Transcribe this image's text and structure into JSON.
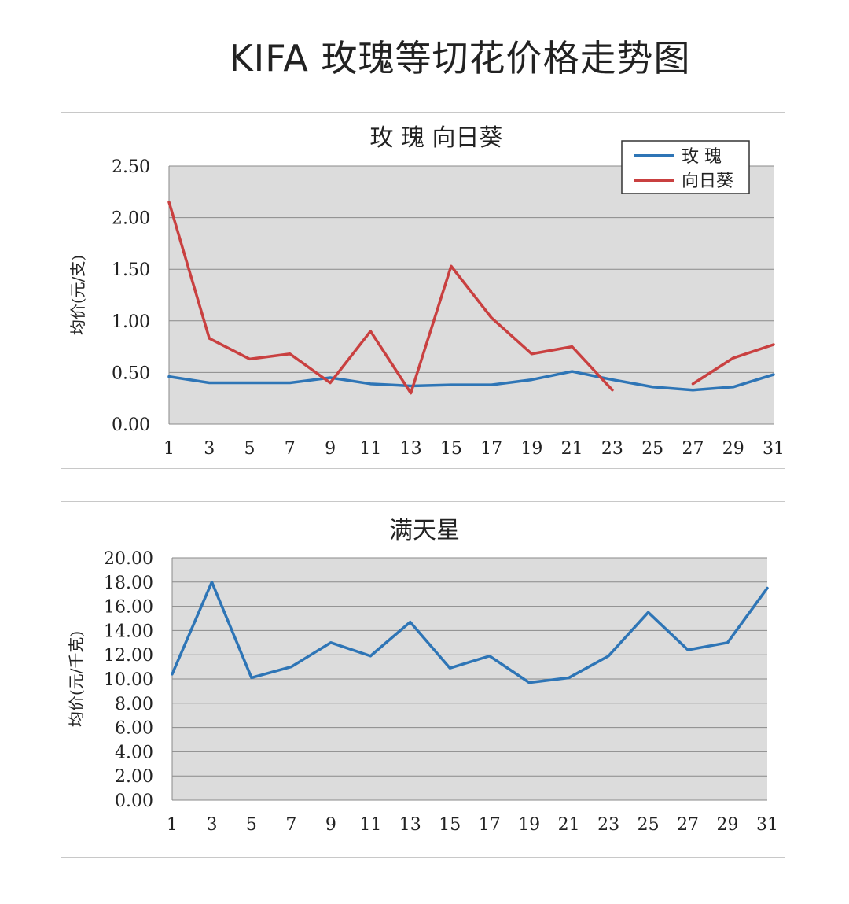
{
  "page_title": "KIFA 玫瑰等切花价格走势图",
  "chart_data": [
    {
      "type": "line",
      "title": "玫  瑰    向日葵",
      "xlabel": "",
      "ylabel": "均价(元/支)",
      "ylim": [
        0,
        2.5
      ],
      "xlim": [
        1,
        31
      ],
      "y_ticks": [
        "0.00",
        "0.50",
        "1.00",
        "1.50",
        "2.00",
        "2.50"
      ],
      "x_ticks": [
        "1",
        "3",
        "5",
        "7",
        "9",
        "11",
        "13",
        "15",
        "17",
        "19",
        "21",
        "23",
        "25",
        "27",
        "29",
        "31"
      ],
      "grid": true,
      "legend_position": "top-right",
      "series": [
        {
          "name": "玫 瑰",
          "color": "#2e75b6",
          "points": [
            [
              1,
              0.46
            ],
            [
              3,
              0.4
            ],
            [
              5,
              0.4
            ],
            [
              7,
              0.4
            ],
            [
              9,
              0.45
            ],
            [
              11,
              0.39
            ],
            [
              13,
              0.37
            ],
            [
              15,
              0.38
            ],
            [
              17,
              0.38
            ],
            [
              19,
              0.43
            ],
            [
              21,
              0.51
            ],
            [
              23,
              0.43
            ],
            [
              25,
              0.36
            ],
            [
              27,
              0.33
            ],
            [
              29,
              0.36
            ],
            [
              31,
              0.48
            ]
          ]
        },
        {
          "name": "向日葵",
          "color": "#c94040",
          "segments": [
            [
              [
                1,
                2.15
              ],
              [
                3,
                0.83
              ],
              [
                5,
                0.63
              ],
              [
                7,
                0.68
              ],
              [
                9,
                0.4
              ],
              [
                11,
                0.9
              ],
              [
                13,
                0.3
              ],
              [
                15,
                1.53
              ],
              [
                17,
                1.03
              ],
              [
                19,
                0.68
              ],
              [
                21,
                0.75
              ],
              [
                23,
                0.33
              ]
            ],
            [
              [
                27,
                0.39
              ],
              [
                29,
                0.64
              ],
              [
                31,
                0.77
              ]
            ]
          ]
        }
      ]
    },
    {
      "type": "line",
      "title": "满天星",
      "xlabel": "",
      "ylabel": "均价(元/千克)",
      "ylim": [
        0,
        20
      ],
      "xlim": [
        1,
        31
      ],
      "y_ticks": [
        "0.00",
        "2.00",
        "4.00",
        "6.00",
        "8.00",
        "10.00",
        "12.00",
        "14.00",
        "16.00",
        "18.00",
        "20.00"
      ],
      "x_ticks": [
        "1",
        "3",
        "5",
        "7",
        "9",
        "11",
        "13",
        "15",
        "17",
        "19",
        "21",
        "23",
        "25",
        "27",
        "29",
        "31"
      ],
      "grid": true,
      "series": [
        {
          "name": "",
          "color": "#2e75b6",
          "points": [
            [
              1,
              10.4
            ],
            [
              3,
              18.0
            ],
            [
              5,
              10.1
            ],
            [
              7,
              11.0
            ],
            [
              9,
              13.0
            ],
            [
              11,
              11.9
            ],
            [
              13,
              14.7
            ],
            [
              15,
              10.9
            ],
            [
              17,
              11.9
            ],
            [
              19,
              9.7
            ],
            [
              21,
              10.1
            ],
            [
              23,
              11.9
            ],
            [
              25,
              15.5
            ],
            [
              27,
              12.4
            ],
            [
              29,
              13.0
            ],
            [
              31,
              17.5
            ]
          ]
        }
      ]
    }
  ]
}
